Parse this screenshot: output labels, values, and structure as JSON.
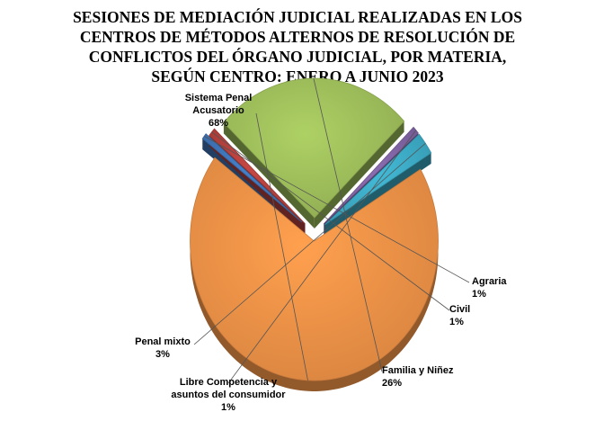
{
  "chart_data": {
    "type": "pie",
    "title_lines": [
      "SESIONES DE MEDIACIÓN JUDICIAL REALIZADAS EN LOS",
      "CENTROS DE MÉTODOS ALTERNOS DE RESOLUCIÓN DE",
      "CONFLICTOS DEL ÓRGANO JUDICIAL, POR MATERIA,",
      "SEGÚN CENTRO:  ENERO A JUNIO 2023"
    ],
    "slices": [
      {
        "label_lines": [
          "Sistema Penal",
          "Acusatorio"
        ],
        "pct_label": "68%",
        "value": 68.0,
        "color": "#EB8F46"
      },
      {
        "label_lines": [
          "Agraria"
        ],
        "pct_label": "1%",
        "value": 0.7,
        "color": "#3E72B4"
      },
      {
        "label_lines": [
          "Civil"
        ],
        "pct_label": "1%",
        "value": 1.0,
        "color": "#B13F3C"
      },
      {
        "label_lines": [
          "Familia  y Niñez"
        ],
        "pct_label": "26%",
        "value": 25.6,
        "color": "#9BBB59"
      },
      {
        "label_lines": [
          "Libre Competencia y",
          "asuntos del consumidor"
        ],
        "pct_label": "1%",
        "value": 0.9,
        "color": "#7E62A1"
      },
      {
        "label_lines": [
          "Penal mixto"
        ],
        "pct_label": "3%",
        "value": 2.6,
        "color": "#3CA8C2"
      }
    ]
  }
}
